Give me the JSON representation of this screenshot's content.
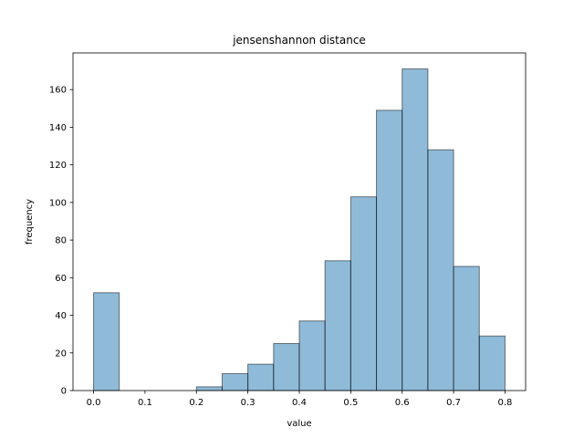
{
  "chart_data": {
    "type": "bar",
    "title": "jensenshannon distance",
    "xlabel": "value",
    "ylabel": "frequency",
    "xlim": [
      -0.04,
      0.84
    ],
    "ylim": [
      0,
      179.5
    ],
    "grid": false,
    "bar_color": "#1f77b4",
    "bar_alpha": 0.5,
    "edge_color": "#000000",
    "xticks": [
      0.0,
      0.1,
      0.2,
      0.3,
      0.4,
      0.5,
      0.6,
      0.7,
      0.8
    ],
    "xtick_labels": [
      "0.0",
      "0.1",
      "0.2",
      "0.3",
      "0.4",
      "0.5",
      "0.6",
      "0.7",
      "0.8"
    ],
    "yticks": [
      0,
      20,
      40,
      60,
      80,
      100,
      120,
      140,
      160
    ],
    "ytick_labels": [
      "0",
      "20",
      "40",
      "60",
      "80",
      "100",
      "120",
      "140",
      "160"
    ],
    "bins": [
      {
        "x0": 0.0,
        "x1": 0.05,
        "value": 52
      },
      {
        "x0": 0.05,
        "x1": 0.1,
        "value": 0
      },
      {
        "x0": 0.1,
        "x1": 0.15,
        "value": 0
      },
      {
        "x0": 0.15,
        "x1": 0.2,
        "value": 0
      },
      {
        "x0": 0.2,
        "x1": 0.25,
        "value": 2
      },
      {
        "x0": 0.25,
        "x1": 0.3,
        "value": 9
      },
      {
        "x0": 0.3,
        "x1": 0.35,
        "value": 14
      },
      {
        "x0": 0.35,
        "x1": 0.4,
        "value": 25
      },
      {
        "x0": 0.4,
        "x1": 0.45,
        "value": 37
      },
      {
        "x0": 0.45,
        "x1": 0.5,
        "value": 69
      },
      {
        "x0": 0.5,
        "x1": 0.55,
        "value": 103
      },
      {
        "x0": 0.55,
        "x1": 0.6,
        "value": 149
      },
      {
        "x0": 0.6,
        "x1": 0.65,
        "value": 171
      },
      {
        "x0": 0.65,
        "x1": 0.7,
        "value": 128
      },
      {
        "x0": 0.7,
        "x1": 0.75,
        "value": 66
      },
      {
        "x0": 0.75,
        "x1": 0.8,
        "value": 29
      }
    ]
  }
}
